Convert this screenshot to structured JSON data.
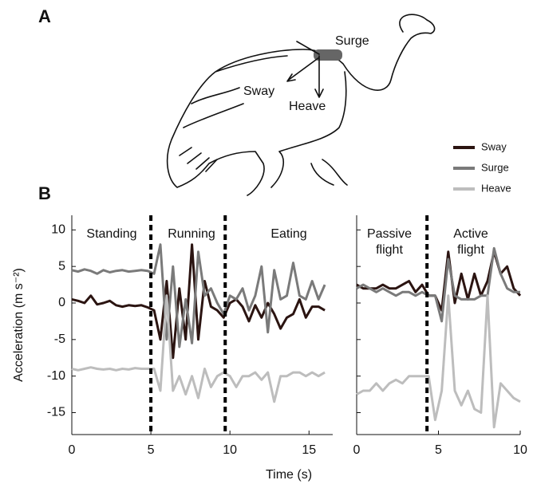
{
  "panel_labels": {
    "a": "A",
    "b": "B"
  },
  "diagram": {
    "labels": [
      "Surge",
      "Sway",
      "Heave"
    ]
  },
  "xlabel": "Time (s)",
  "chart_data": [
    {
      "type": "line",
      "ylabel": "Acceleration (m s⁻²)",
      "xlim": [
        0,
        16.5
      ],
      "xticks": [
        0,
        5,
        10,
        15
      ],
      "ylim": [
        -18,
        12
      ],
      "yticks": [
        -15,
        -10,
        -5,
        0,
        5,
        10
      ],
      "vlines": [
        5,
        9.7
      ],
      "annotations": [
        [
          "Standing"
        ],
        [
          "Running"
        ],
        [
          "Eating"
        ]
      ],
      "x": [
        0,
        0.4,
        0.8,
        1.2,
        1.6,
        2,
        2.4,
        2.8,
        3.2,
        3.6,
        4,
        4.4,
        4.8,
        5.2,
        5.6,
        6,
        6.4,
        6.8,
        7.2,
        7.6,
        8,
        8.4,
        8.8,
        9.2,
        9.6,
        10,
        10.4,
        10.8,
        11.2,
        11.6,
        12,
        12.4,
        12.8,
        13.2,
        13.6,
        14,
        14.4,
        14.8,
        15.2,
        15.6,
        16
      ],
      "series": [
        {
          "name": "Sway",
          "color": "#2b1411",
          "values": [
            0.5,
            0.3,
            0,
            1,
            -0.2,
            0,
            0.3,
            -0.3,
            -0.5,
            -0.3,
            -0.4,
            -0.3,
            -0.6,
            -1,
            -5,
            3,
            -7.5,
            2,
            -5,
            8,
            -5,
            3,
            -0.5,
            -1,
            -2,
            0,
            0.5,
            -0.5,
            -2.5,
            -0.3,
            -2,
            0,
            -1.5,
            -3.5,
            -2,
            -1.5,
            0.5,
            -2,
            -0.5,
            -0.5,
            -1
          ]
        },
        {
          "name": "Surge",
          "color": "#7a7a7a",
          "values": [
            4.5,
            4.3,
            4.6,
            4.4,
            4,
            4.5,
            4.2,
            4.4,
            4.5,
            4.3,
            4.4,
            4.5,
            4.4,
            4,
            8,
            -5,
            5,
            -6,
            0.5,
            -5.5,
            7,
            1,
            2,
            0,
            -1.5,
            1,
            0.5,
            2,
            -1,
            1,
            5,
            -4,
            4.5,
            0.5,
            1,
            5.5,
            1,
            0.5,
            3,
            0.5,
            2.5
          ]
        },
        {
          "name": "Heave",
          "color": "#bdbdbd",
          "values": [
            -9,
            -9.2,
            -9,
            -8.8,
            -9,
            -9.1,
            -9,
            -9.2,
            -9,
            -9.1,
            -8.9,
            -9,
            -9,
            -9,
            -12,
            1,
            -12,
            -10,
            -12.5,
            -10,
            -13,
            -9,
            -11.5,
            -10,
            -9.5,
            -10,
            -11.5,
            -10,
            -10,
            -9.5,
            -10.5,
            -9.5,
            -13.5,
            -10,
            -10,
            -9.5,
            -9.5,
            -10,
            -9.5,
            -10,
            -9.5
          ]
        }
      ]
    },
    {
      "type": "line",
      "show_ytick_labels": false,
      "xlim": [
        0,
        10
      ],
      "xticks": [
        0,
        5,
        10
      ],
      "ylim": [
        -18,
        12
      ],
      "yticks": [
        -15,
        -10,
        -5,
        0,
        5,
        10
      ],
      "vlines": [
        4.3
      ],
      "annotations": [
        [
          "Passive",
          "flight"
        ],
        [
          "Active",
          "flight"
        ]
      ],
      "x": [
        0,
        0.4,
        0.8,
        1.2,
        1.6,
        2,
        2.4,
        2.8,
        3.2,
        3.6,
        4,
        4.4,
        4.8,
        5.2,
        5.6,
        6,
        6.4,
        6.8,
        7.2,
        7.6,
        8,
        8.4,
        8.8,
        9.2,
        9.6,
        10
      ],
      "series": [
        {
          "name": "Sway",
          "color": "#2b1411",
          "values": [
            2.5,
            2,
            2,
            2,
            2.5,
            2,
            2,
            2.5,
            3,
            1.5,
            2.5,
            1,
            1,
            -1,
            7,
            0,
            4,
            0.5,
            4,
            1,
            3,
            7,
            4,
            5,
            2,
            1
          ]
        },
        {
          "name": "Surge",
          "color": "#7a7a7a",
          "values": [
            2,
            2.5,
            2,
            1.5,
            2,
            1.5,
            1,
            1.5,
            1.5,
            1,
            1.5,
            1,
            1,
            -2.5,
            6,
            1,
            0.5,
            0.5,
            0.5,
            1,
            1,
            7.5,
            4,
            2,
            1.5,
            1.5
          ]
        },
        {
          "name": "Heave",
          "color": "#bdbdbd",
          "values": [
            -12.5,
            -12,
            -12,
            -11,
            -12,
            -11,
            -10.5,
            -11,
            -10,
            -10,
            -10,
            -10,
            -16,
            -12,
            1,
            -12,
            -14,
            -12,
            -14.5,
            -15,
            1,
            -17,
            -11,
            -12,
            -13,
            -13.5
          ]
        }
      ]
    }
  ]
}
